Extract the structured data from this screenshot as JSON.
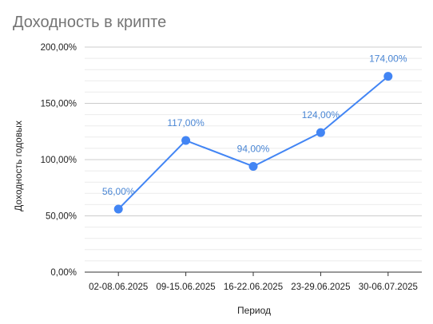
{
  "chart_data": {
    "type": "line",
    "title": "Доходность в крипте",
    "xlabel": "Период",
    "ylabel": "Доходность годовых",
    "categories": [
      "02-08.06.2025",
      "09-15.06.2025",
      "16-22.06.2025",
      "23-29.06.2025",
      "30-06.07.2025"
    ],
    "series": [
      {
        "values": [
          56,
          117,
          94,
          124,
          174
        ],
        "value_labels": [
          "56,00%",
          "117,00%",
          "94,00%",
          "124,00%",
          "174,00%"
        ],
        "color": "#4285f4",
        "label_color": "#4a86d4"
      }
    ],
    "ylim": [
      0,
      200
    ],
    "y_ticks": [
      0,
      50,
      100,
      150,
      200
    ],
    "y_tick_labels": [
      "0,00%",
      "50,00%",
      "100,00%",
      "150,00%",
      "200,00%"
    ],
    "y_minor_step": 10,
    "grid": true,
    "legend": "none"
  }
}
